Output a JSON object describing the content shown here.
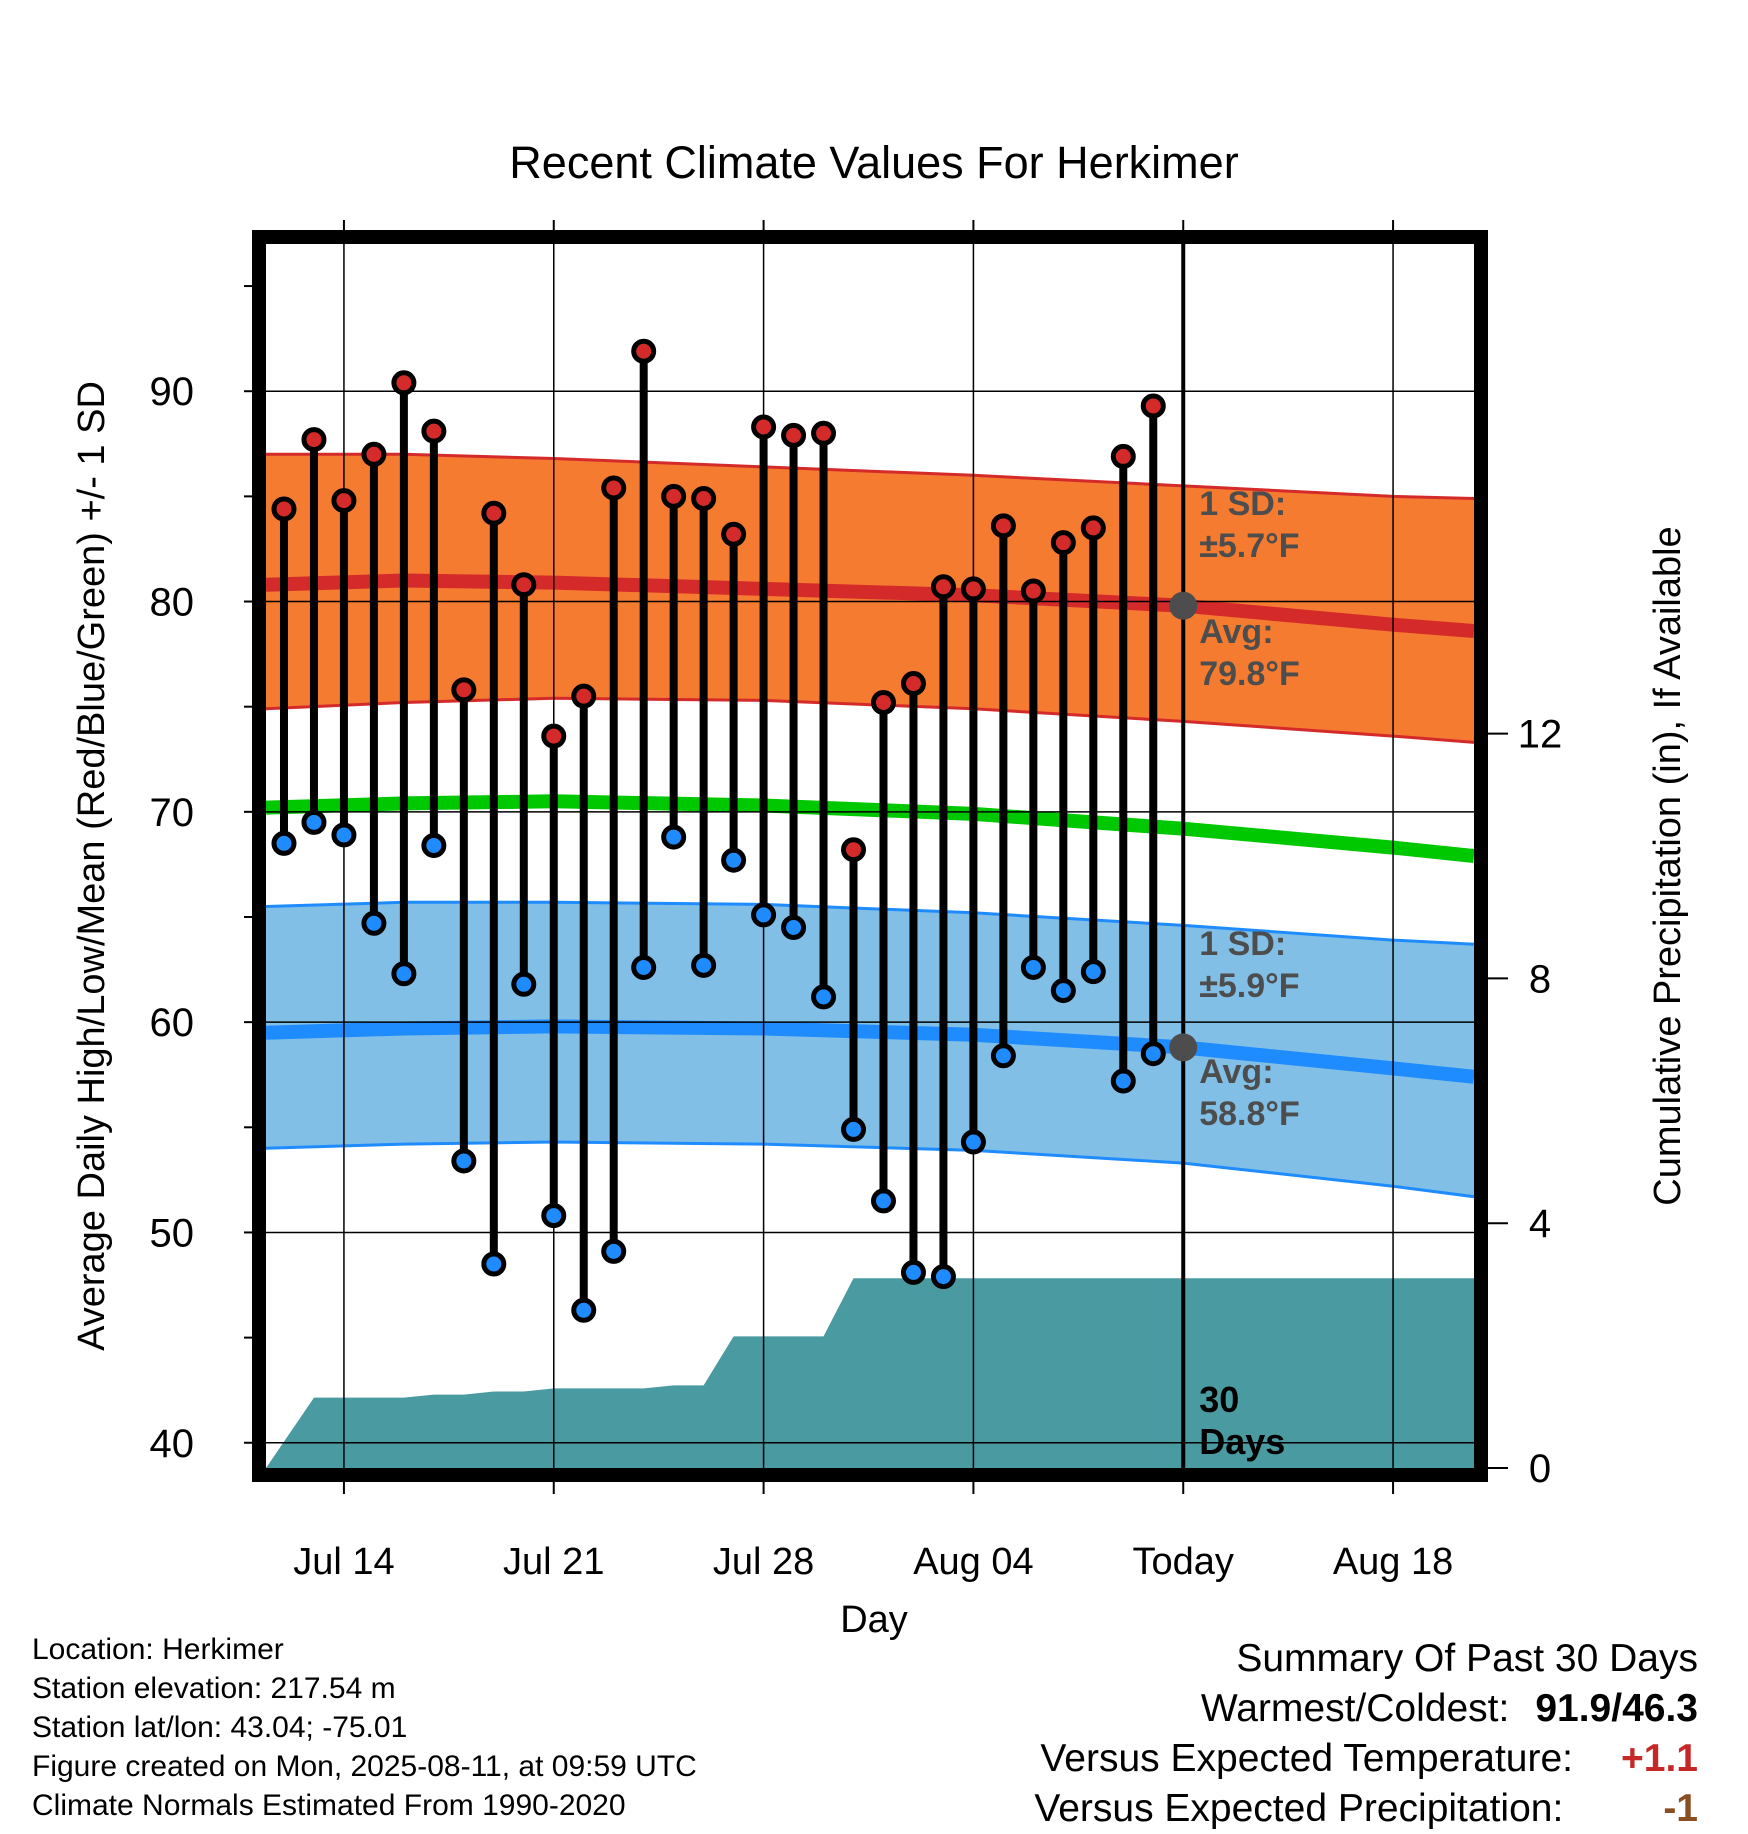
{
  "chart_data": {
    "type": "line",
    "title": "Recent Climate Values For Herkimer",
    "xlabel": "Day",
    "ylabel": "Average Daily High/Low/Mean (Red/Blue/Green) +/- 1 SD",
    "y2label": "Cumulative Precipitation (in), If Available",
    "ylim": [
      38.8,
      97
    ],
    "y2lim": [
      0,
      20
    ],
    "y_ticks": [
      "40",
      "50",
      "60",
      "70",
      "80",
      "90"
    ],
    "y2_ticks": [
      "0",
      "4",
      "8",
      "12"
    ],
    "x_tick_labels": [
      "Jul 14",
      "Jul 21",
      "Jul 28",
      "Aug 04",
      "Today",
      "Aug 18"
    ],
    "x_day_offsets": [
      0,
      7,
      14,
      21,
      28,
      35
    ],
    "x_range_days": [
      -2.6,
      37.7
    ],
    "today_day": 28,
    "grid": true,
    "days": [
      -2,
      -1,
      0,
      1,
      2,
      3,
      4,
      5,
      6,
      7,
      8,
      9,
      10,
      11,
      12,
      13,
      14,
      15,
      16,
      17,
      18,
      19,
      20,
      21,
      22,
      23,
      24,
      25,
      26,
      27
    ],
    "daily_high": [
      84.4,
      87.7,
      84.8,
      87.0,
      90.4,
      88.1,
      75.8,
      84.2,
      80.8,
      73.6,
      75.5,
      85.4,
      91.9,
      85.0,
      84.9,
      83.2,
      88.3,
      87.9,
      88.0,
      68.2,
      75.2,
      76.1,
      80.7,
      80.6,
      83.6,
      80.5,
      82.8,
      83.5,
      86.9,
      89.3
    ],
    "daily_low": [
      68.5,
      69.5,
      68.9,
      64.7,
      62.3,
      68.4,
      53.4,
      48.5,
      61.8,
      50.8,
      46.3,
      49.1,
      62.6,
      68.8,
      62.7,
      67.7,
      65.1,
      64.5,
      61.2,
      54.9,
      51.5,
      48.1,
      47.9,
      54.3,
      58.4,
      62.6,
      61.5,
      62.4,
      57.2,
      58.5
    ],
    "normal_days": [
      -2.6,
      2,
      7,
      14,
      21,
      28,
      35,
      37.7
    ],
    "normal_high_mean": [
      80.8,
      81.0,
      80.9,
      80.6,
      80.3,
      79.8,
      78.9,
      78.6
    ],
    "normal_high_upper": [
      87.0,
      87.0,
      86.8,
      86.4,
      86.0,
      85.5,
      85.0,
      84.9
    ],
    "normal_high_lower": [
      74.9,
      75.2,
      75.4,
      75.3,
      74.9,
      74.3,
      73.6,
      73.3
    ],
    "normal_mean": [
      70.2,
      70.4,
      70.5,
      70.3,
      69.9,
      69.2,
      68.3,
      67.9
    ],
    "normal_low_mean": [
      59.5,
      59.7,
      59.8,
      59.7,
      59.4,
      58.8,
      57.8,
      57.4
    ],
    "normal_low_upper": [
      65.5,
      65.7,
      65.7,
      65.6,
      65.2,
      64.6,
      63.9,
      63.7
    ],
    "normal_low_lower": [
      54.0,
      54.2,
      54.3,
      54.2,
      53.9,
      53.3,
      52.2,
      51.7
    ],
    "precip_days": [
      -2.6,
      -1,
      0,
      2,
      3,
      4,
      5,
      6,
      7,
      8,
      9,
      10,
      11,
      12,
      13,
      14,
      15,
      16,
      17,
      37.7
    ],
    "precip_cumulative": [
      0.0,
      1.15,
      1.15,
      1.15,
      1.2,
      1.2,
      1.25,
      1.25,
      1.3,
      1.3,
      1.3,
      1.3,
      1.35,
      1.35,
      2.15,
      2.15,
      2.15,
      2.15,
      3.1,
      3.1
    ],
    "annotations": {
      "high_sd_label": "1 SD:",
      "high_sd_value": "±5.7°F",
      "high_avg_label": "Avg:",
      "high_avg_value": "79.8°F",
      "low_sd_label": "1 SD:",
      "low_sd_value": "±5.9°F",
      "low_avg_label": "Avg:",
      "low_avg_value": "58.8°F",
      "window_number": "30",
      "window_unit": "Days"
    },
    "colors": {
      "high_band": "#f47b30",
      "high_line": "#d42a2a",
      "mean_line": "#00c800",
      "low_band": "#82bfe6",
      "low_line": "#1e8cff",
      "precip": "#4a9aa2",
      "high_point": "#d42a2a",
      "low_point": "#1e8cff",
      "annotation": "#4d4d4d"
    }
  },
  "footer": {
    "location": "Location: Herkimer",
    "elevation": "Station elevation: 217.54 m",
    "latlon": "Station lat/lon: 43.04; -75.01",
    "created": "Figure created on Mon, 2025-08-11, at 09:59 UTC",
    "normals": "Climate Normals Estimated From 1990-2020"
  },
  "summary": {
    "heading": "Summary Of Past 30 Days",
    "warm_cold_label": "Warmest/Coldest:",
    "warm_cold_value": "91.9/46.3",
    "temp_label": "Versus Expected Temperature:",
    "temp_value": "+1.1",
    "precip_label": "Versus Expected Precipitation:",
    "precip_value": "-1"
  }
}
